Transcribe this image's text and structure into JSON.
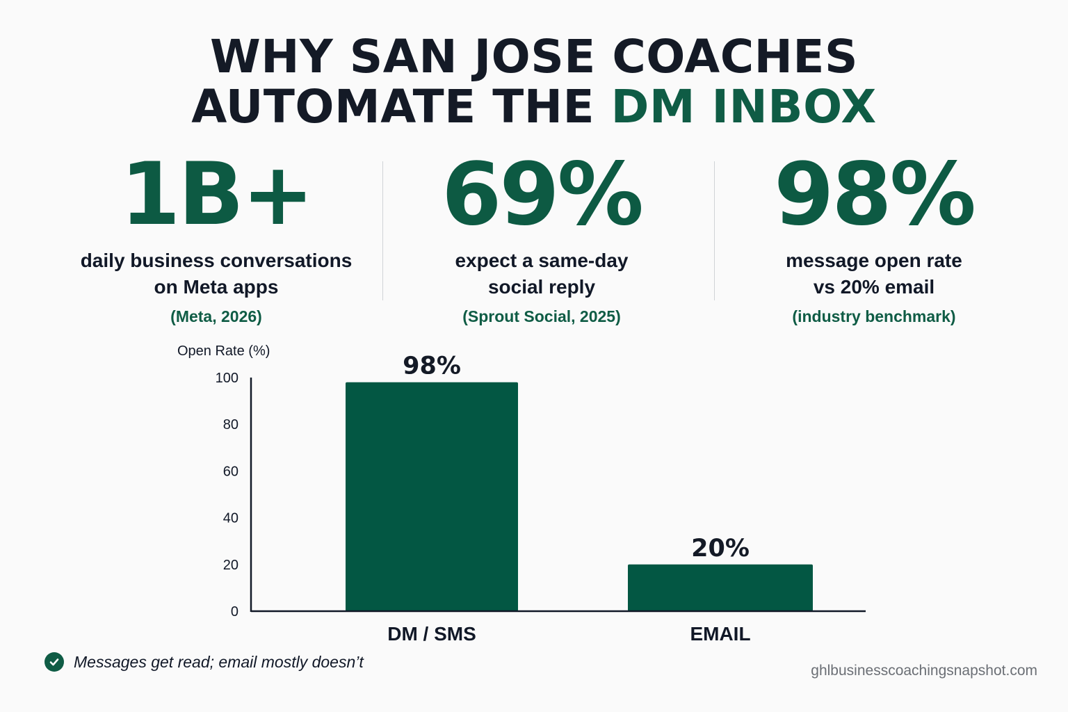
{
  "header": {
    "title_line1": "WHY SAN JOSE COACHES",
    "title_line2_part1": "AUTOMATE THE",
    "title_line2_accent": "DM INBOX"
  },
  "stats": [
    {
      "value": "1B+",
      "desc_line1": "daily business conversations",
      "desc_line2": "on Meta apps",
      "source": "(Meta, 2026)"
    },
    {
      "value": "69%",
      "desc_line1": "expect a same-day",
      "desc_line2": "social reply",
      "source": "(Sprout Social, 2025)"
    },
    {
      "value": "98%",
      "desc_line1": "message open rate",
      "desc_line2": "vs 20% email",
      "source": "(industry benchmark)"
    }
  ],
  "chart_data": {
    "type": "bar",
    "ylabel": "Open Rate (%)",
    "xlabel": "",
    "categories": [
      "DM / SMS",
      "EMAIL"
    ],
    "values": [
      98,
      20
    ],
    "data_labels": [
      "98%",
      "20%"
    ],
    "yticks": [
      0,
      20,
      40,
      60,
      80,
      100
    ],
    "ylim": [
      0,
      100
    ],
    "grid": false,
    "legend": "none"
  },
  "note": {
    "icon": "check-circle-icon",
    "text": "Messages get read; email mostly doesn’t"
  },
  "footer": {
    "site": "ghlbusinesscoachingsnapshot.com"
  },
  "colors": {
    "accent": "#0f5c45",
    "bar": "#035743",
    "text": "#141a26"
  }
}
